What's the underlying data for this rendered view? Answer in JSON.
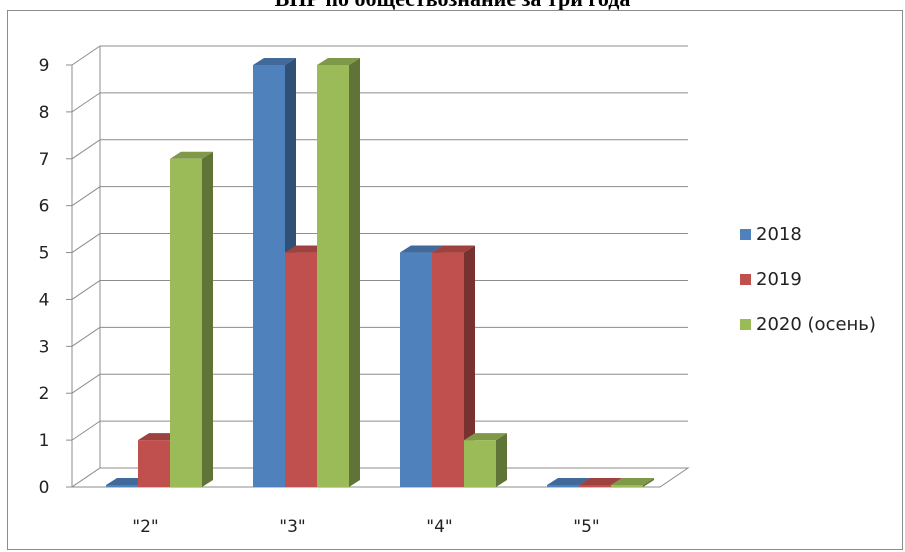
{
  "chart_data": {
    "type": "bar",
    "title": "ВПР по обществознание за три года",
    "categories": [
      "\"2\"",
      "\"3\"",
      "\"4\"",
      "\"5\""
    ],
    "series": [
      {
        "name": "2018",
        "values": [
          0,
          9,
          5,
          0
        ],
        "color": "#4f81bd"
      },
      {
        "name": "2019",
        "values": [
          1,
          5,
          5,
          0
        ],
        "color": "#c0504d"
      },
      {
        "name": "2020 (осень)",
        "values": [
          7,
          9,
          1,
          0
        ],
        "color": "#9bbb59"
      }
    ],
    "yticks": [
      "0",
      "1",
      "2",
      "3",
      "4",
      "5",
      "6",
      "7",
      "8",
      "9"
    ],
    "ylim": [
      0,
      9
    ],
    "grid": true,
    "legend_position": "right",
    "style": "3d-column"
  }
}
